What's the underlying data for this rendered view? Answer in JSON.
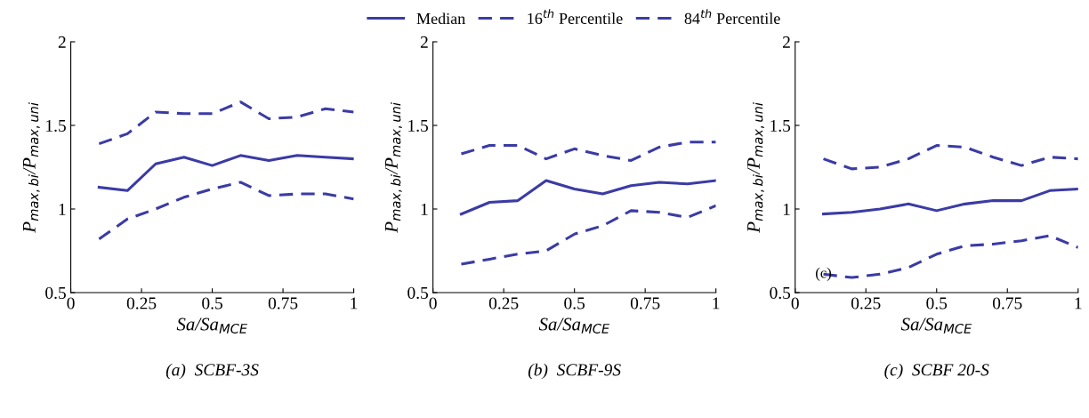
{
  "chart_data": [
    {
      "type": "line",
      "title": "(a)  SCBF-3S",
      "xlabel": "Sa/Sa$_{MCE}$",
      "ylabel": "P$_{max,bi}$/P$_{max,uni}$",
      "x": [
        0.1,
        0.2,
        0.3,
        0.4,
        0.5,
        0.6,
        0.7,
        0.8,
        0.9,
        1.0
      ],
      "xlim": [
        0,
        1
      ],
      "ylim": [
        0.5,
        2
      ],
      "xticks": [
        0,
        0.25,
        0.5,
        0.75,
        1
      ],
      "yticks": [
        0.5,
        1,
        1.5,
        2
      ],
      "grid": false,
      "series": [
        {
          "color": "#3b3ba6",
          "line_style": "solid",
          "values": [
            1.13,
            1.11,
            1.27,
            1.31,
            1.26,
            1.32,
            1.29,
            1.32,
            1.31,
            1.3
          ]
        },
        {
          "color": "#3b3ba6",
          "line_style": "dashed",
          "values": [
            0.82,
            0.94,
            1.0,
            1.07,
            1.12,
            1.16,
            1.08,
            1.09,
            1.09,
            1.06
          ]
        },
        {
          "color": "#3b3ba6",
          "line_style": "dashed",
          "values": [
            1.39,
            1.45,
            1.58,
            1.57,
            1.57,
            1.64,
            1.54,
            1.55,
            1.6,
            1.58
          ]
        }
      ]
    },
    {
      "type": "line",
      "title": "(b)  SCBF-9S",
      "xlabel": "Sa/Sa$_{MCE}$",
      "ylabel": "P$_{max,bi}$/P$_{max,uni}$",
      "x": [
        0.1,
        0.2,
        0.3,
        0.4,
        0.5,
        0.6,
        0.7,
        0.8,
        0.9,
        1.0
      ],
      "xlim": [
        0,
        1
      ],
      "ylim": [
        0.5,
        2
      ],
      "xticks": [
        0,
        0.25,
        0.5,
        0.75,
        1
      ],
      "yticks": [
        0.5,
        1,
        1.5,
        2
      ],
      "grid": false,
      "legend": "top",
      "series": [
        {
          "name": "Median",
          "color": "#3b3ba6",
          "line_style": "solid",
          "values": [
            0.97,
            1.04,
            1.05,
            1.17,
            1.12,
            1.09,
            1.14,
            1.16,
            1.15,
            1.17
          ]
        },
        {
          "name": "16$^{th}$ Percentile",
          "color": "#3b3ba6",
          "line_style": "dashed",
          "values": [
            0.67,
            0.7,
            0.73,
            0.75,
            0.85,
            0.9,
            0.99,
            0.98,
            0.95,
            1.02
          ]
        },
        {
          "name": "84$^{th}$ Percentile",
          "color": "#3b3ba6",
          "line_style": "dashed",
          "values": [
            1.33,
            1.38,
            1.38,
            1.3,
            1.36,
            1.32,
            1.29,
            1.37,
            1.4,
            1.4
          ]
        }
      ]
    },
    {
      "type": "line",
      "title": "(c)  SCBF 20-S",
      "xlabel": "Sa/Sa$_{MCE}$",
      "ylabel": "P$_{max,bi}$/P$_{max,uni}$",
      "x": [
        0.1,
        0.2,
        0.3,
        0.4,
        0.5,
        0.6,
        0.7,
        0.8,
        0.9,
        1.0
      ],
      "xlim": [
        0,
        1
      ],
      "ylim": [
        0.5,
        2
      ],
      "xticks": [
        0,
        0.25,
        0.5,
        0.75,
        1
      ],
      "yticks": [
        0.5,
        1,
        1.5,
        2
      ],
      "grid": false,
      "annotations": [
        {
          "text": "(c)",
          "x": 0.1,
          "y": 0.61
        }
      ],
      "series": [
        {
          "color": "#3b3ba6",
          "line_style": "solid",
          "values": [
            0.97,
            0.98,
            1.0,
            1.03,
            0.99,
            1.03,
            1.05,
            1.05,
            1.11,
            1.12
          ]
        },
        {
          "color": "#3b3ba6",
          "line_style": "dashed",
          "values": [
            0.61,
            0.59,
            0.61,
            0.65,
            0.73,
            0.78,
            0.79,
            0.81,
            0.84,
            0.77
          ]
        },
        {
          "color": "#3b3ba6",
          "line_style": "dashed",
          "values": [
            1.3,
            1.24,
            1.25,
            1.3,
            1.38,
            1.37,
            1.31,
            1.26,
            1.31,
            1.3
          ]
        }
      ]
    }
  ]
}
